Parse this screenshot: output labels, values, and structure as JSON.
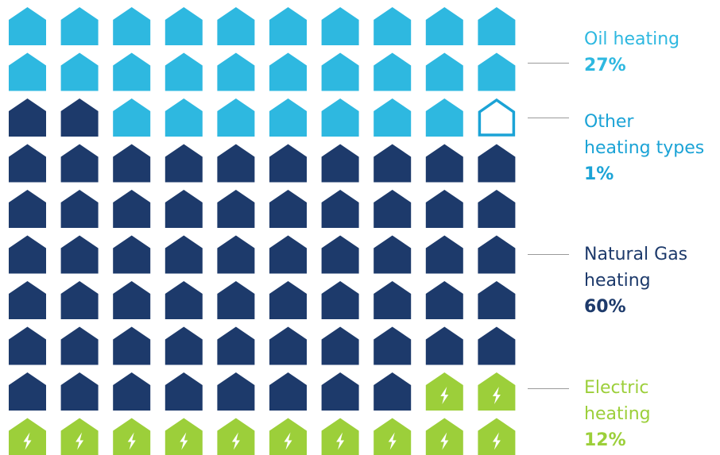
{
  "chart_data": {
    "type": "waffle",
    "grid": {
      "rows": 10,
      "cols": 10
    },
    "series": [
      {
        "name": "Oil heating",
        "label_lines": [
          "Oil heating"
        ],
        "value_label": "27%",
        "value": 27,
        "color": "#2eb8e0",
        "style": "filled",
        "icon": "house-icon"
      },
      {
        "name": "Other heating types",
        "label_lines": [
          "Other",
          "heating types"
        ],
        "value_label": "1%",
        "value": 1,
        "color": "#1ba3d6",
        "style": "outline",
        "icon": "house-outline-icon"
      },
      {
        "name": "Natural Gas heating",
        "label_lines": [
          "Natural Gas",
          "heating"
        ],
        "value_label": "60%",
        "value": 60,
        "color": "#1d3a6b",
        "style": "filled",
        "icon": "house-icon"
      },
      {
        "name": "Electric heating",
        "label_lines": [
          "Electric",
          "heating"
        ],
        "value_label": "12%",
        "value": 12,
        "color": "#9ccf3a",
        "style": "filled",
        "icon": "lightning-house-icon"
      }
    ],
    "cells": [
      "oil",
      "oil",
      "oil",
      "oil",
      "oil",
      "oil",
      "oil",
      "oil",
      "oil",
      "oil",
      "oil",
      "oil",
      "oil",
      "oil",
      "oil",
      "oil",
      "oil",
      "oil",
      "oil",
      "oil",
      "gas",
      "gas",
      "oil",
      "oil",
      "oil",
      "oil",
      "oil",
      "oil",
      "oil",
      "other",
      "gas",
      "gas",
      "gas",
      "gas",
      "gas",
      "gas",
      "gas",
      "gas",
      "gas",
      "gas",
      "gas",
      "gas",
      "gas",
      "gas",
      "gas",
      "gas",
      "gas",
      "gas",
      "gas",
      "gas",
      "gas",
      "gas",
      "gas",
      "gas",
      "gas",
      "gas",
      "gas",
      "gas",
      "gas",
      "gas",
      "gas",
      "gas",
      "gas",
      "gas",
      "gas",
      "gas",
      "gas",
      "gas",
      "gas",
      "gas",
      "gas",
      "gas",
      "gas",
      "gas",
      "gas",
      "gas",
      "gas",
      "gas",
      "gas",
      "gas",
      "gas",
      "gas",
      "gas",
      "gas",
      "gas",
      "gas",
      "gas",
      "gas",
      "elec",
      "elec",
      "elec",
      "elec",
      "elec",
      "elec",
      "elec",
      "elec",
      "elec",
      "elec",
      "elec",
      "elec"
    ],
    "cell_keys": {
      "oil": 0,
      "other": 1,
      "gas": 2,
      "elec": 3
    },
    "legend": "right"
  }
}
